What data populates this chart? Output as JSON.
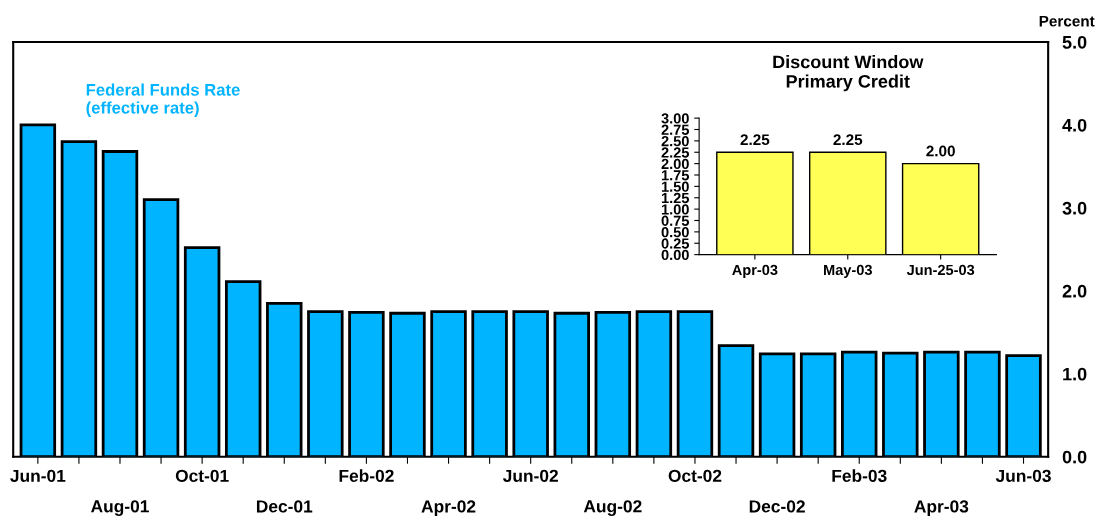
{
  "chart_data": [
    {
      "type": "bar",
      "ylabel": "Percent",
      "categories": [
        "Jun-01",
        null,
        "Aug-01",
        null,
        "Oct-01",
        null,
        "Dec-01",
        null,
        "Feb-02",
        null,
        "Apr-02",
        null,
        "Jun-02",
        null,
        "Aug-02",
        null,
        "Oct-02",
        null,
        "Dec-02",
        null,
        "Feb-03",
        null,
        "Apr-03",
        null,
        "Jun-03"
      ],
      "series": [
        {
          "name": "Federal Funds Rate\n(effective rate)",
          "color": "#00b4ff",
          "values": [
            4.0,
            3.8,
            3.68,
            3.1,
            2.52,
            2.11,
            1.85,
            1.75,
            1.74,
            1.73,
            1.75,
            1.75,
            1.75,
            1.73,
            1.74,
            1.75,
            1.75,
            1.34,
            1.24,
            1.24,
            1.26,
            1.25,
            1.26,
            1.26,
            1.22
          ]
        }
      ],
      "ylim": [
        0,
        5
      ],
      "yticks": [
        {
          "value": 0,
          "label": "0.0"
        },
        {
          "value": 1,
          "label": "1.0"
        },
        {
          "value": 2,
          "label": "2.0"
        },
        {
          "value": 3,
          "label": "3.0"
        },
        {
          "value": 4,
          "label": "4.0"
        },
        {
          "value": 5,
          "label": "5.0"
        }
      ],
      "grid": false,
      "legend": false
    },
    {
      "type": "bar",
      "title": "Discount Window\nPrimary Credit",
      "categories": [
        "Apr-03",
        "May-03",
        "Jun-25-03"
      ],
      "series": [
        {
          "color": "#ffff55",
          "values": [
            2.25,
            2.25,
            2.0
          ]
        }
      ],
      "value_labels": [
        "2.25",
        "2.25",
        "2.00"
      ],
      "ylim": [
        0,
        3
      ],
      "yticks": [
        {
          "value": 0,
          "label": "0.00"
        },
        {
          "value": 0.25,
          "label": "0.25"
        },
        {
          "value": 0.5,
          "label": "0.50"
        },
        {
          "value": 0.75,
          "label": "0.75"
        },
        {
          "value": 1,
          "label": "1.00"
        },
        {
          "value": 1.25,
          "label": "1.25"
        },
        {
          "value": 1.5,
          "label": "1.50"
        },
        {
          "value": 1.75,
          "label": "1.75"
        },
        {
          "value": 2,
          "label": "2.00"
        },
        {
          "value": 2.25,
          "label": "2.25"
        },
        {
          "value": 2.5,
          "label": "2.50"
        },
        {
          "value": 2.75,
          "label": "2.75"
        },
        {
          "value": 3,
          "label": "3.00"
        }
      ],
      "grid": false,
      "legend": false
    }
  ]
}
